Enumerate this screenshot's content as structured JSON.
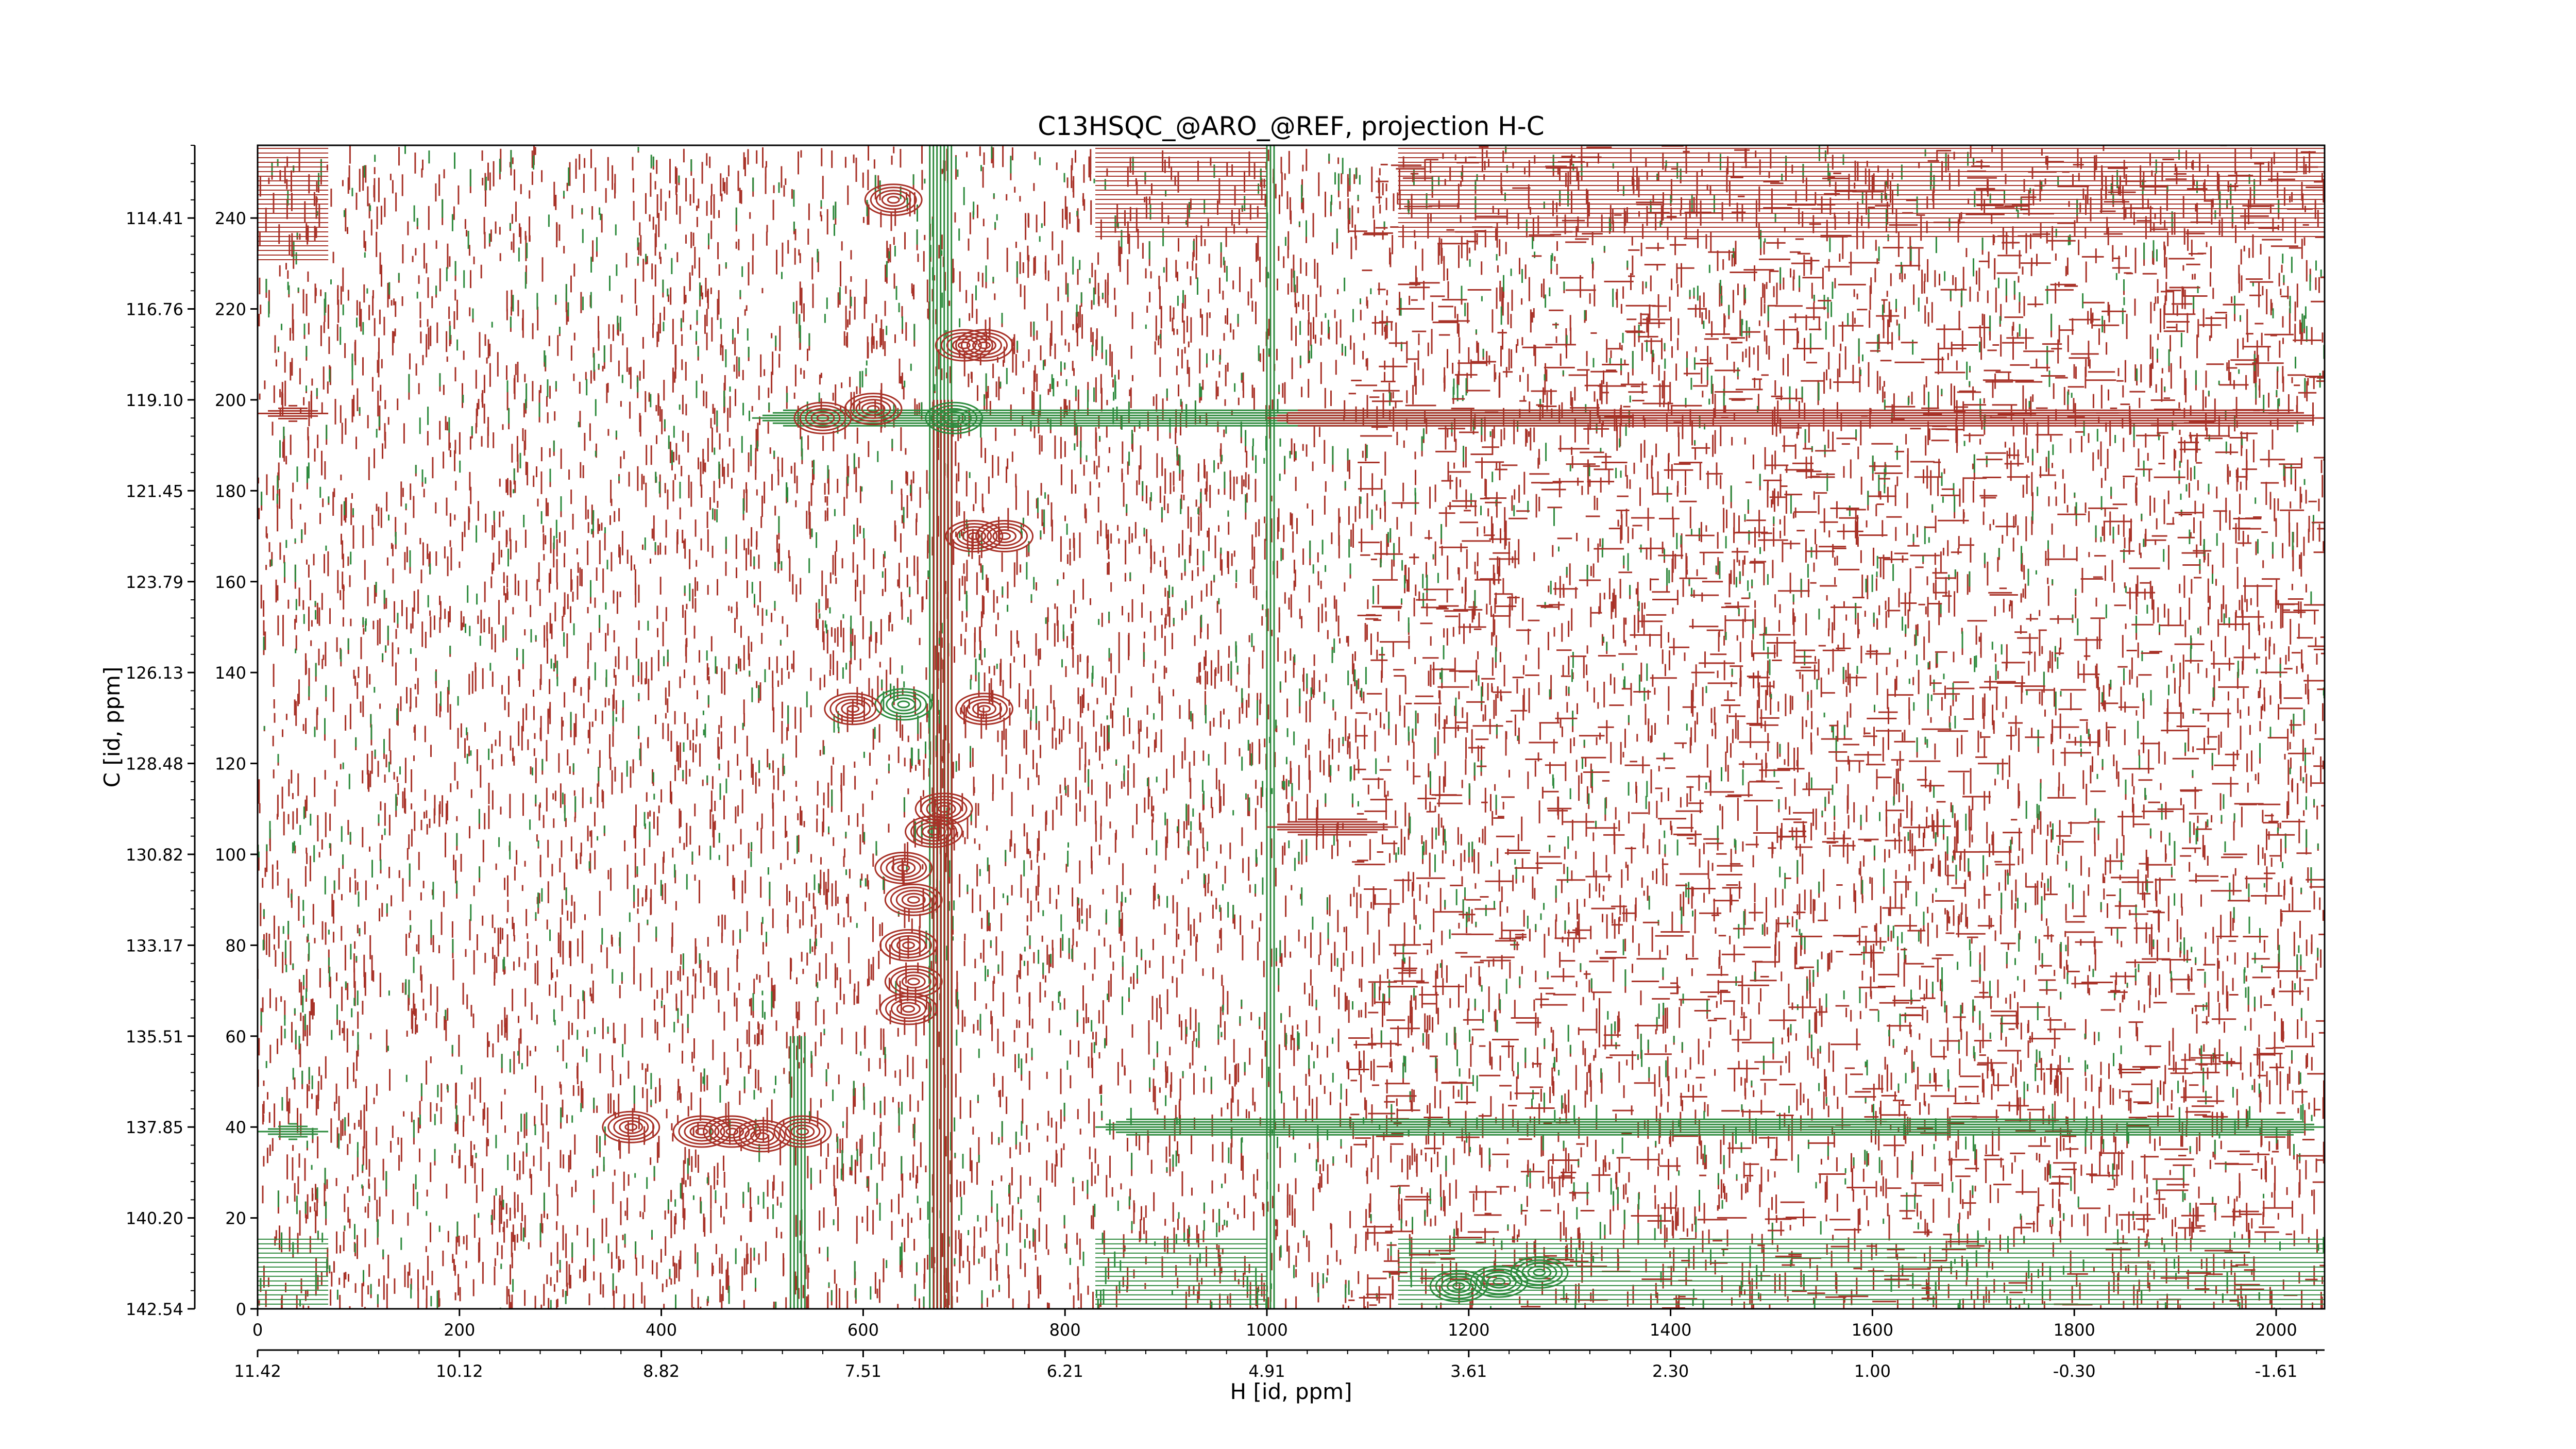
{
  "chart_data": {
    "type": "contour",
    "title": "C13HSQC_@ARO_@REF, projection H-C",
    "xlabel": "H [id, ppm]",
    "ylabel": "C [id, ppm]",
    "x_points": {
      "range": [
        0,
        2048
      ],
      "ticks": [
        0,
        200,
        400,
        600,
        800,
        1000,
        1200,
        1400,
        1600,
        1800,
        2000
      ],
      "tick_labels": [
        "0",
        "200",
        "400",
        "600",
        "800",
        "1000",
        "1200",
        "1400",
        "1600",
        "1800",
        "2000"
      ]
    },
    "x_ppm": {
      "ticks": [
        11.42,
        10.12,
        8.82,
        7.51,
        6.21,
        4.91,
        3.61,
        2.3,
        1.0,
        -0.3,
        -1.61
      ],
      "tick_labels": [
        "11.42",
        "10.12",
        "8.82",
        "7.51",
        "6.21",
        "4.91",
        "3.61",
        "2.30",
        "1.00",
        "-0.30",
        "-1.61"
      ]
    },
    "y_points": {
      "range": [
        0,
        256
      ],
      "ticks": [
        0,
        20,
        40,
        60,
        80,
        100,
        120,
        140,
        160,
        180,
        200,
        220,
        240
      ],
      "tick_labels": [
        "0",
        "20",
        "40",
        "60",
        "80",
        "100",
        "120",
        "140",
        "160",
        "180",
        "200",
        "220",
        "240"
      ]
    },
    "y_ppm": {
      "ticks": [
        142.54,
        140.2,
        137.85,
        135.51,
        133.17,
        130.82,
        128.48,
        126.13,
        123.79,
        121.45,
        119.1,
        116.76,
        114.41
      ],
      "tick_labels": [
        "142.54",
        "140.20",
        "137.85",
        "135.51",
        "133.17",
        "130.82",
        "128.48",
        "126.13",
        "123.79",
        "121.45",
        "119.10",
        "116.76",
        "114.41"
      ]
    },
    "series": [
      {
        "sign": "positive",
        "color": "#a83228"
      },
      {
        "sign": "negative",
        "color": "#2e8b3e"
      }
    ],
    "peaks": [
      {
        "x": 630,
        "y": 244,
        "sign": "positive"
      },
      {
        "x": 700,
        "y": 212,
        "sign": "positive"
      },
      {
        "x": 720,
        "y": 212,
        "sign": "positive"
      },
      {
        "x": 610,
        "y": 198,
        "sign": "positive"
      },
      {
        "x": 690,
        "y": 196,
        "sign": "negative"
      },
      {
        "x": 560,
        "y": 196,
        "sign": "positive"
      },
      {
        "x": 710,
        "y": 170,
        "sign": "positive"
      },
      {
        "x": 740,
        "y": 170,
        "sign": "positive"
      },
      {
        "x": 640,
        "y": 133,
        "sign": "negative"
      },
      {
        "x": 590,
        "y": 132,
        "sign": "positive"
      },
      {
        "x": 720,
        "y": 132,
        "sign": "positive"
      },
      {
        "x": 670,
        "y": 105,
        "sign": "positive"
      },
      {
        "x": 680,
        "y": 110,
        "sign": "positive"
      },
      {
        "x": 640,
        "y": 97,
        "sign": "positive"
      },
      {
        "x": 650,
        "y": 90,
        "sign": "positive"
      },
      {
        "x": 645,
        "y": 80,
        "sign": "positive"
      },
      {
        "x": 650,
        "y": 72,
        "sign": "positive"
      },
      {
        "x": 645,
        "y": 66,
        "sign": "positive"
      },
      {
        "x": 370,
        "y": 40,
        "sign": "positive"
      },
      {
        "x": 440,
        "y": 39,
        "sign": "positive"
      },
      {
        "x": 470,
        "y": 39,
        "sign": "positive"
      },
      {
        "x": 500,
        "y": 38,
        "sign": "positive"
      },
      {
        "x": 540,
        "y": 39,
        "sign": "positive"
      },
      {
        "x": 1190,
        "y": 5,
        "sign": "negative"
      },
      {
        "x": 1230,
        "y": 6,
        "sign": "negative"
      },
      {
        "x": 1270,
        "y": 8,
        "sign": "negative"
      }
    ],
    "horizontal_ridges": [
      {
        "y": 196,
        "x_range": [
          490,
          1350
        ],
        "sign": "negative"
      },
      {
        "y": 197,
        "x_range": [
          0,
          70
        ],
        "sign": "positive"
      },
      {
        "y": 196,
        "x_range": [
          1000,
          2048
        ],
        "sign": "positive"
      },
      {
        "y": 39,
        "x_range": [
          0,
          70
        ],
        "sign": "negative"
      },
      {
        "y": 40,
        "x_range": [
          830,
          2048
        ],
        "sign": "negative"
      },
      {
        "y": 106,
        "x_range": [
          1000,
          1130
        ],
        "sign": "positive"
      }
    ],
    "vertical_bands": [
      {
        "x_range": [
          666,
          690
        ],
        "y_range": [
          0,
          256
        ],
        "sign": "negative"
      },
      {
        "x_range": [
          528,
          545
        ],
        "y_range": [
          0,
          60
        ],
        "sign": "negative"
      },
      {
        "x_range": [
          670,
          690
        ],
        "y_range": [
          0,
          200
        ],
        "sign": "positive"
      },
      {
        "x_range": [
          1000,
          1010
        ],
        "y_range": [
          0,
          256
        ],
        "sign": "negative"
      }
    ],
    "dense_regions": [
      {
        "x_range": [
          0,
          2048
        ],
        "y_range": [
          0,
          256
        ],
        "sign": "positive",
        "texture": "vertical-streaks"
      },
      {
        "x_range": [
          1080,
          2048
        ],
        "y_range": [
          0,
          256
        ],
        "sign": "positive",
        "texture": "horizontal-streaks"
      },
      {
        "x_range": [
          830,
          1000
        ],
        "y_range": [
          0,
          16
        ],
        "sign": "negative",
        "texture": "horizontal-lines"
      },
      {
        "x_range": [
          0,
          70
        ],
        "y_range": [
          0,
          16
        ],
        "sign": "negative",
        "texture": "horizontal-lines"
      },
      {
        "x_range": [
          1130,
          2048
        ],
        "y_range": [
          0,
          16
        ],
        "sign": "negative",
        "texture": "horizontal-lines"
      },
      {
        "x_range": [
          830,
          1000
        ],
        "y_range": [
          235,
          256
        ],
        "sign": "positive",
        "texture": "horizontal-lines"
      },
      {
        "x_range": [
          1130,
          2048
        ],
        "y_range": [
          235,
          256
        ],
        "sign": "positive",
        "texture": "horizontal-lines"
      },
      {
        "x_range": [
          0,
          70
        ],
        "y_range": [
          230,
          256
        ],
        "sign": "positive",
        "texture": "horizontal-lines"
      }
    ]
  }
}
